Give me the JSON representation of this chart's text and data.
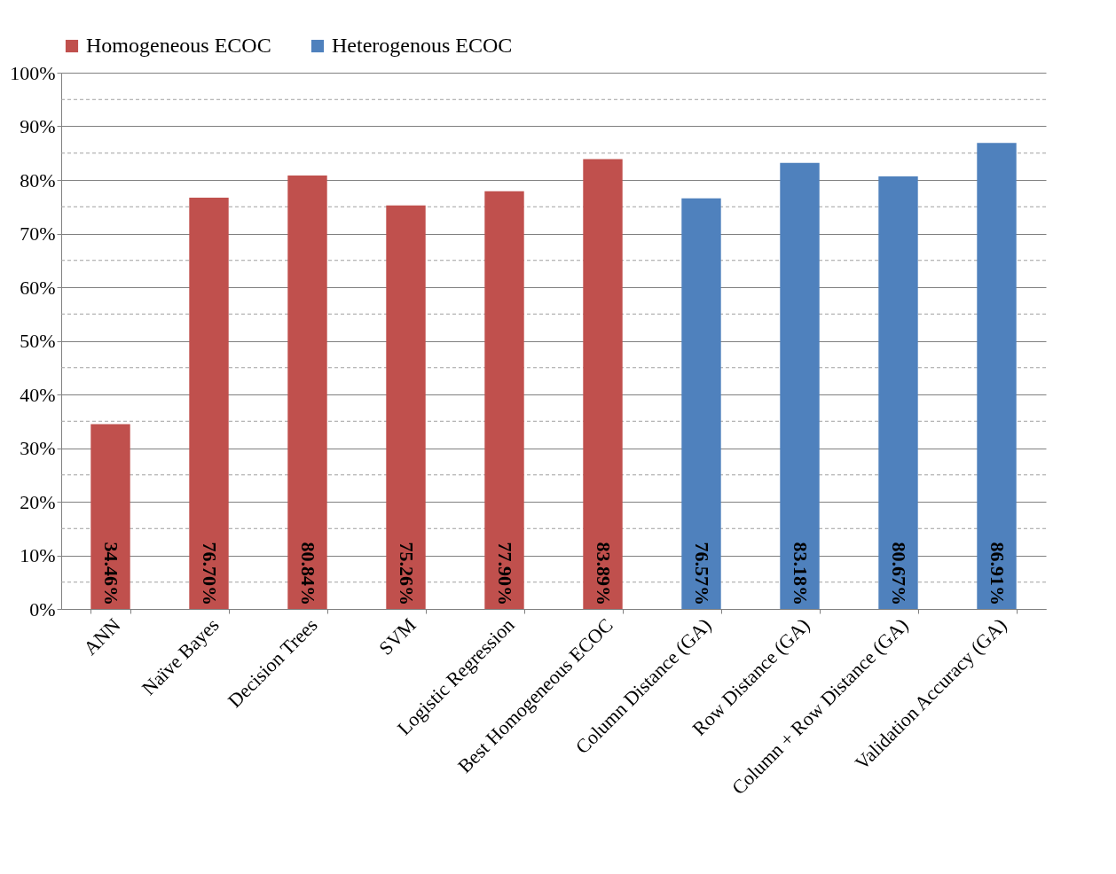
{
  "chart_data": {
    "type": "bar",
    "categories": [
      "ANN",
      "Naïve Bayes",
      "Decision Trees",
      "SVM",
      "Logistic Regression",
      "Best Homogeneous ECOC",
      "Column Distance (GA)",
      "Row Distance (GA)",
      "Column + Row Distance (GA)",
      "Validation Accuracy (GA)"
    ],
    "series": [
      {
        "name": "Homogeneous ECOC",
        "color": "#c0504d",
        "values": [
          34.46,
          76.7,
          80.84,
          75.26,
          77.9,
          83.89,
          null,
          null,
          null,
          null
        ],
        "value_labels": [
          "34.46%",
          "76.70%",
          "80.84%",
          "75.26%",
          "77.90%",
          "83.89%",
          null,
          null,
          null,
          null
        ]
      },
      {
        "name": "Heterogenous ECOC",
        "color": "#4f81bd",
        "values": [
          null,
          null,
          null,
          null,
          null,
          null,
          76.57,
          83.18,
          80.67,
          86.91
        ],
        "value_labels": [
          null,
          null,
          null,
          null,
          null,
          null,
          "76.57%",
          "83.18%",
          "80.67%",
          "86.91%"
        ]
      }
    ],
    "ylim": [
      0,
      100
    ],
    "yticks": [
      {
        "value": 0,
        "label": "0%"
      },
      {
        "value": 5,
        "label": null
      },
      {
        "value": 10,
        "label": "10%"
      },
      {
        "value": 15,
        "label": null
      },
      {
        "value": 20,
        "label": "20%"
      },
      {
        "value": 25,
        "label": null
      },
      {
        "value": 30,
        "label": "30%"
      },
      {
        "value": 35,
        "label": null
      },
      {
        "value": 40,
        "label": "40%"
      },
      {
        "value": 45,
        "label": null
      },
      {
        "value": 50,
        "label": "50%"
      },
      {
        "value": 55,
        "label": null
      },
      {
        "value": 60,
        "label": "60%"
      },
      {
        "value": 65,
        "label": null
      },
      {
        "value": 70,
        "label": "70%"
      },
      {
        "value": 75,
        "label": null
      },
      {
        "value": 80,
        "label": "80%"
      },
      {
        "value": 85,
        "label": null
      },
      {
        "value": 90,
        "label": "90%"
      },
      {
        "value": 95,
        "label": null
      },
      {
        "value": 100,
        "label": "100%"
      }
    ],
    "grid": "y",
    "legend": "top"
  }
}
